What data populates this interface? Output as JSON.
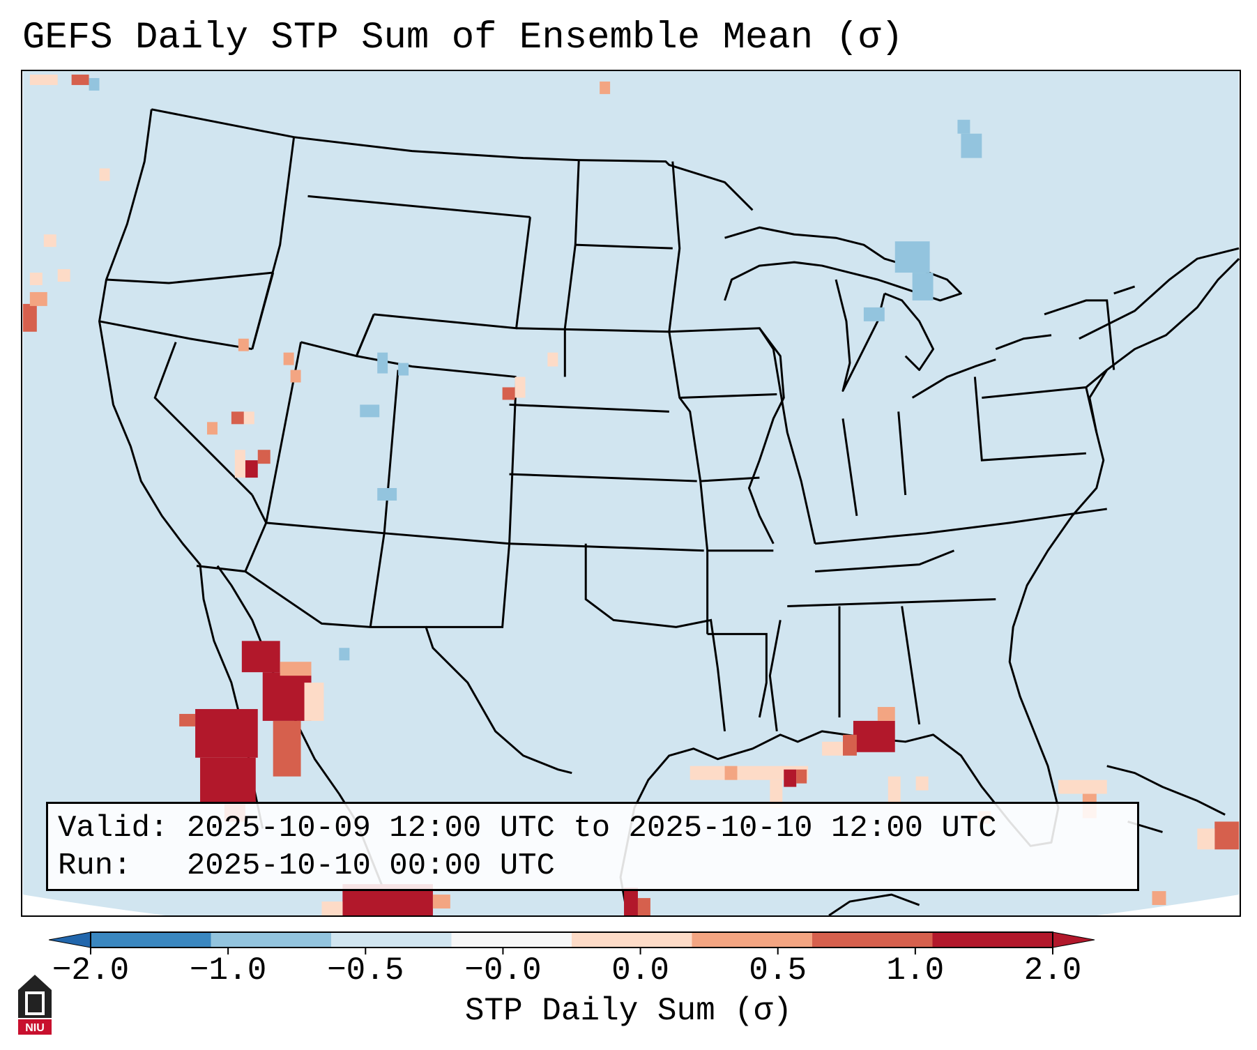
{
  "title": "GEFS Daily STP Sum of Ensemble Mean (σ)",
  "info": {
    "valid_label": "Valid:",
    "valid_value": "2025-10-09 12:00 UTC to 2025-10-10 12:00 UTC",
    "run_label": "Run:",
    "run_value": "2025-10-10 00:00 UTC"
  },
  "colorbar": {
    "label": "STP Daily Sum (σ)",
    "ticks": [
      "−2.0",
      "−1.0",
      "−0.5",
      "−0.0",
      "0.0",
      "0.5",
      "1.0",
      "2.0"
    ],
    "colors": [
      "#3a87c0",
      "#93c4de",
      "#d1e5f0",
      "#f7f7f7",
      "#fddbc7",
      "#f3a582",
      "#d6604d",
      "#b2182b"
    ],
    "extend": "both"
  },
  "map": {
    "background_color": "#d1e5f0",
    "region": "Contiguous United States, southern Canada, northern Mexico, Gulf of Mexico",
    "projection": "Lambert Conformal"
  },
  "logo": {
    "text": "NIU"
  }
}
